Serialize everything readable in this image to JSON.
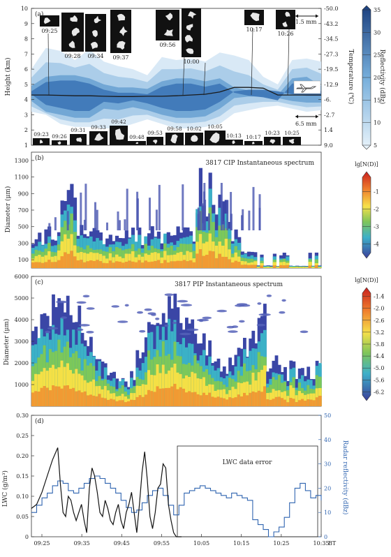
{
  "chart_data": [
    {
      "panel": "(a)",
      "type": "heatmap",
      "ylabel": "Height (km)",
      "y2label": "Temperature (℃)",
      "ylim": [
        1,
        10
      ],
      "yticks": [
        "1",
        "2",
        "3",
        "4",
        "5",
        "6",
        "7",
        "8",
        "9",
        "10"
      ],
      "y2ticks": [
        "-50.0",
        "-43.2",
        "-34.5",
        "-27.3",
        "-19.5",
        "-12.9",
        "-6.",
        "-2.7",
        "1.4",
        "9.0"
      ],
      "colorbar_label": "Reflectivity (dBz)",
      "colorbar_ticks": [
        "5",
        "10",
        "15",
        "20",
        "25",
        "30",
        "35"
      ],
      "colorbar_range": [
        5,
        35
      ],
      "image_time_labels_upper": [
        "09:25",
        "09:28",
        "09:34",
        "09:37",
        "09:56",
        "10:00",
        "10:17",
        "10:26"
      ],
      "image_time_labels_lower": [
        "09:23",
        "09:26",
        "09:31",
        "09:33",
        "09:42",
        "09:48",
        "09:53",
        "09:58",
        "10:02",
        "10:05",
        "10:13",
        "10:17",
        "10:23",
        "10:25"
      ],
      "scale_upper": "1.5 mm",
      "scale_lower": "6.5 mm",
      "flight_height": {
        "x": [
          0,
          5,
          10,
          15,
          20,
          25,
          30,
          35,
          40,
          45,
          50,
          55,
          60,
          65,
          70,
          75,
          80,
          85,
          90,
          95,
          100
        ],
        "y": [
          4.3,
          4.3,
          4.28,
          4.25,
          4.25,
          4.22,
          4.2,
          4.2,
          4.22,
          4.22,
          4.25,
          4.3,
          4.35,
          4.5,
          4.8,
          4.8,
          4.75,
          4.3,
          4.3,
          4.3,
          4.3
        ]
      },
      "cloud": {
        "x": [
          0,
          5,
          10,
          15,
          20,
          25,
          30,
          35,
          40,
          45,
          50,
          55,
          60,
          65,
          70,
          75,
          80,
          85,
          90,
          95,
          100
        ],
        "top": [
          6.0,
          7.4,
          7.2,
          6.6,
          7.3,
          6.5,
          6.2,
          6.0,
          5.6,
          6.8,
          6.6,
          6.7,
          6.5,
          7.1,
          6.9,
          6.6,
          5.5,
          5.0,
          6.6,
          6.7,
          6.5
        ],
        "bottom": [
          3.2,
          3.0,
          2.4,
          2.2,
          2.2,
          2.1,
          2.1,
          2.4,
          2.7,
          2.4,
          2.1,
          2.1,
          2.2,
          2.4,
          3.1,
          3.3,
          3.5,
          3.6,
          3.4,
          3.2,
          3.3
        ],
        "core_top": [
          4.9,
          5.5,
          5.6,
          5.6,
          5.4,
          5.0,
          4.8,
          4.8,
          4.7,
          5.2,
          5.4,
          5.4,
          5.2,
          5.4,
          4.8,
          4.6,
          4.5,
          4.3,
          5.4,
          5.5,
          4.9
        ],
        "core_bottom": [
          3.9,
          3.2,
          3.0,
          2.8,
          2.8,
          3.4,
          3.3,
          3.5,
          3.3,
          3.0,
          2.8,
          2.8,
          2.9,
          3.4,
          4.1,
          4.2,
          4.2,
          4.1,
          3.9,
          3.8,
          3.8
        ]
      }
    },
    {
      "panel": "(b)",
      "type": "heatmap",
      "title": "3817 CIP Instantaneous spectrum",
      "ylabel": "Diameter (μm)",
      "yticks": [
        "100",
        "300",
        "500",
        "700",
        "900",
        "1100",
        "1300"
      ],
      "ylim": [
        0,
        1400
      ],
      "colorbar_label": "lg[N(D)]",
      "colorbar_ticks": [
        "-1",
        "-2",
        "-3",
        "-4"
      ],
      "colorbar_range": [
        -4.5,
        0
      ]
    },
    {
      "panel": "(c)",
      "type": "heatmap",
      "title": "3817 PIP Instantaneous spectrum",
      "ylabel": "Diameter (μm)",
      "yticks": [
        "1000",
        "2000",
        "3000",
        "4000",
        "5000",
        "6000"
      ],
      "ylim": [
        0,
        6000
      ],
      "colorbar_label": "lg[N(D)]",
      "colorbar_ticks": [
        "-1.4",
        "-2.0",
        "-2.6",
        "-3.2",
        "-3.8",
        "-4.4",
        "-5.0",
        "-5.6",
        "-6.2"
      ],
      "colorbar_range": [
        -6.6,
        -1.1
      ]
    },
    {
      "panel": "(d)",
      "type": "line",
      "ylabel": "LWC (g/m³)",
      "y2label": "Radar reflectivity (dBz)",
      "ylim": [
        0,
        0.3
      ],
      "y2lim": [
        0,
        50
      ],
      "yticks": [
        "0",
        "0.05",
        "0.10",
        "0.15",
        "0.20",
        "0.25",
        "0.30"
      ],
      "y2ticks": [
        "0",
        "10",
        "20",
        "30",
        "40",
        "50"
      ],
      "xticks": [
        "09:25",
        "09:35",
        "09:45",
        "09:55",
        "10:05",
        "10:15",
        "10:25",
        "10:35"
      ],
      "xunit": "BT",
      "annotation": "LWC data error",
      "lwc": {
        "t": [
          0,
          2,
          4,
          6,
          8,
          10,
          11,
          12,
          13,
          14,
          15,
          16,
          17,
          18,
          19,
          20,
          21,
          22,
          23,
          24,
          25,
          26,
          27,
          28,
          29,
          30,
          31,
          32,
          33,
          34,
          35,
          36,
          37,
          38,
          39,
          40,
          41,
          42,
          43,
          44,
          45,
          46,
          47,
          48,
          49,
          50,
          51,
          52,
          53,
          54,
          55,
          56,
          57
        ],
        "v": [
          0.07,
          0.08,
          0.11,
          0.15,
          0.19,
          0.22,
          0.13,
          0.06,
          0.05,
          0.1,
          0.09,
          0.06,
          0.04,
          0.06,
          0.08,
          0.04,
          0.01,
          0.12,
          0.17,
          0.15,
          0.11,
          0.06,
          0.05,
          0.09,
          0.07,
          0.04,
          0.03,
          0.06,
          0.08,
          0.04,
          0.02,
          0.06,
          0.08,
          0.11,
          0.06,
          0.01,
          0.08,
          0.16,
          0.21,
          0.14,
          0.05,
          0.02,
          0.06,
          0.12,
          0.13,
          0.18,
          0.17,
          0.08,
          0.04,
          0.01,
          0.0,
          0.0,
          0.0
        ]
      },
      "dbz": {
        "t": [
          0,
          2,
          4,
          6,
          8,
          10,
          12,
          14,
          16,
          18,
          20,
          22,
          24,
          26,
          28,
          30,
          32,
          34,
          36,
          38,
          40,
          42,
          44,
          46,
          48,
          50,
          52,
          54,
          56,
          58,
          60,
          62,
          64,
          66,
          68,
          70,
          72,
          74,
          76,
          78,
          80,
          82,
          84,
          86,
          88,
          90,
          92,
          94,
          96,
          98,
          100,
          102,
          104,
          106,
          108,
          110
        ],
        "v": [
          10,
          13,
          16,
          18,
          21,
          23,
          22,
          19,
          18,
          20,
          22,
          24,
          25,
          24,
          22,
          20,
          18,
          15,
          12,
          10,
          11,
          14,
          17,
          19,
          20,
          17,
          13,
          9,
          13,
          18,
          19,
          20,
          21,
          20,
          19,
          18,
          17,
          16,
          18,
          17,
          16,
          15,
          7,
          5,
          3,
          0,
          2,
          4,
          8,
          14,
          20,
          22,
          19,
          16,
          17,
          15
        ]
      }
    }
  ]
}
